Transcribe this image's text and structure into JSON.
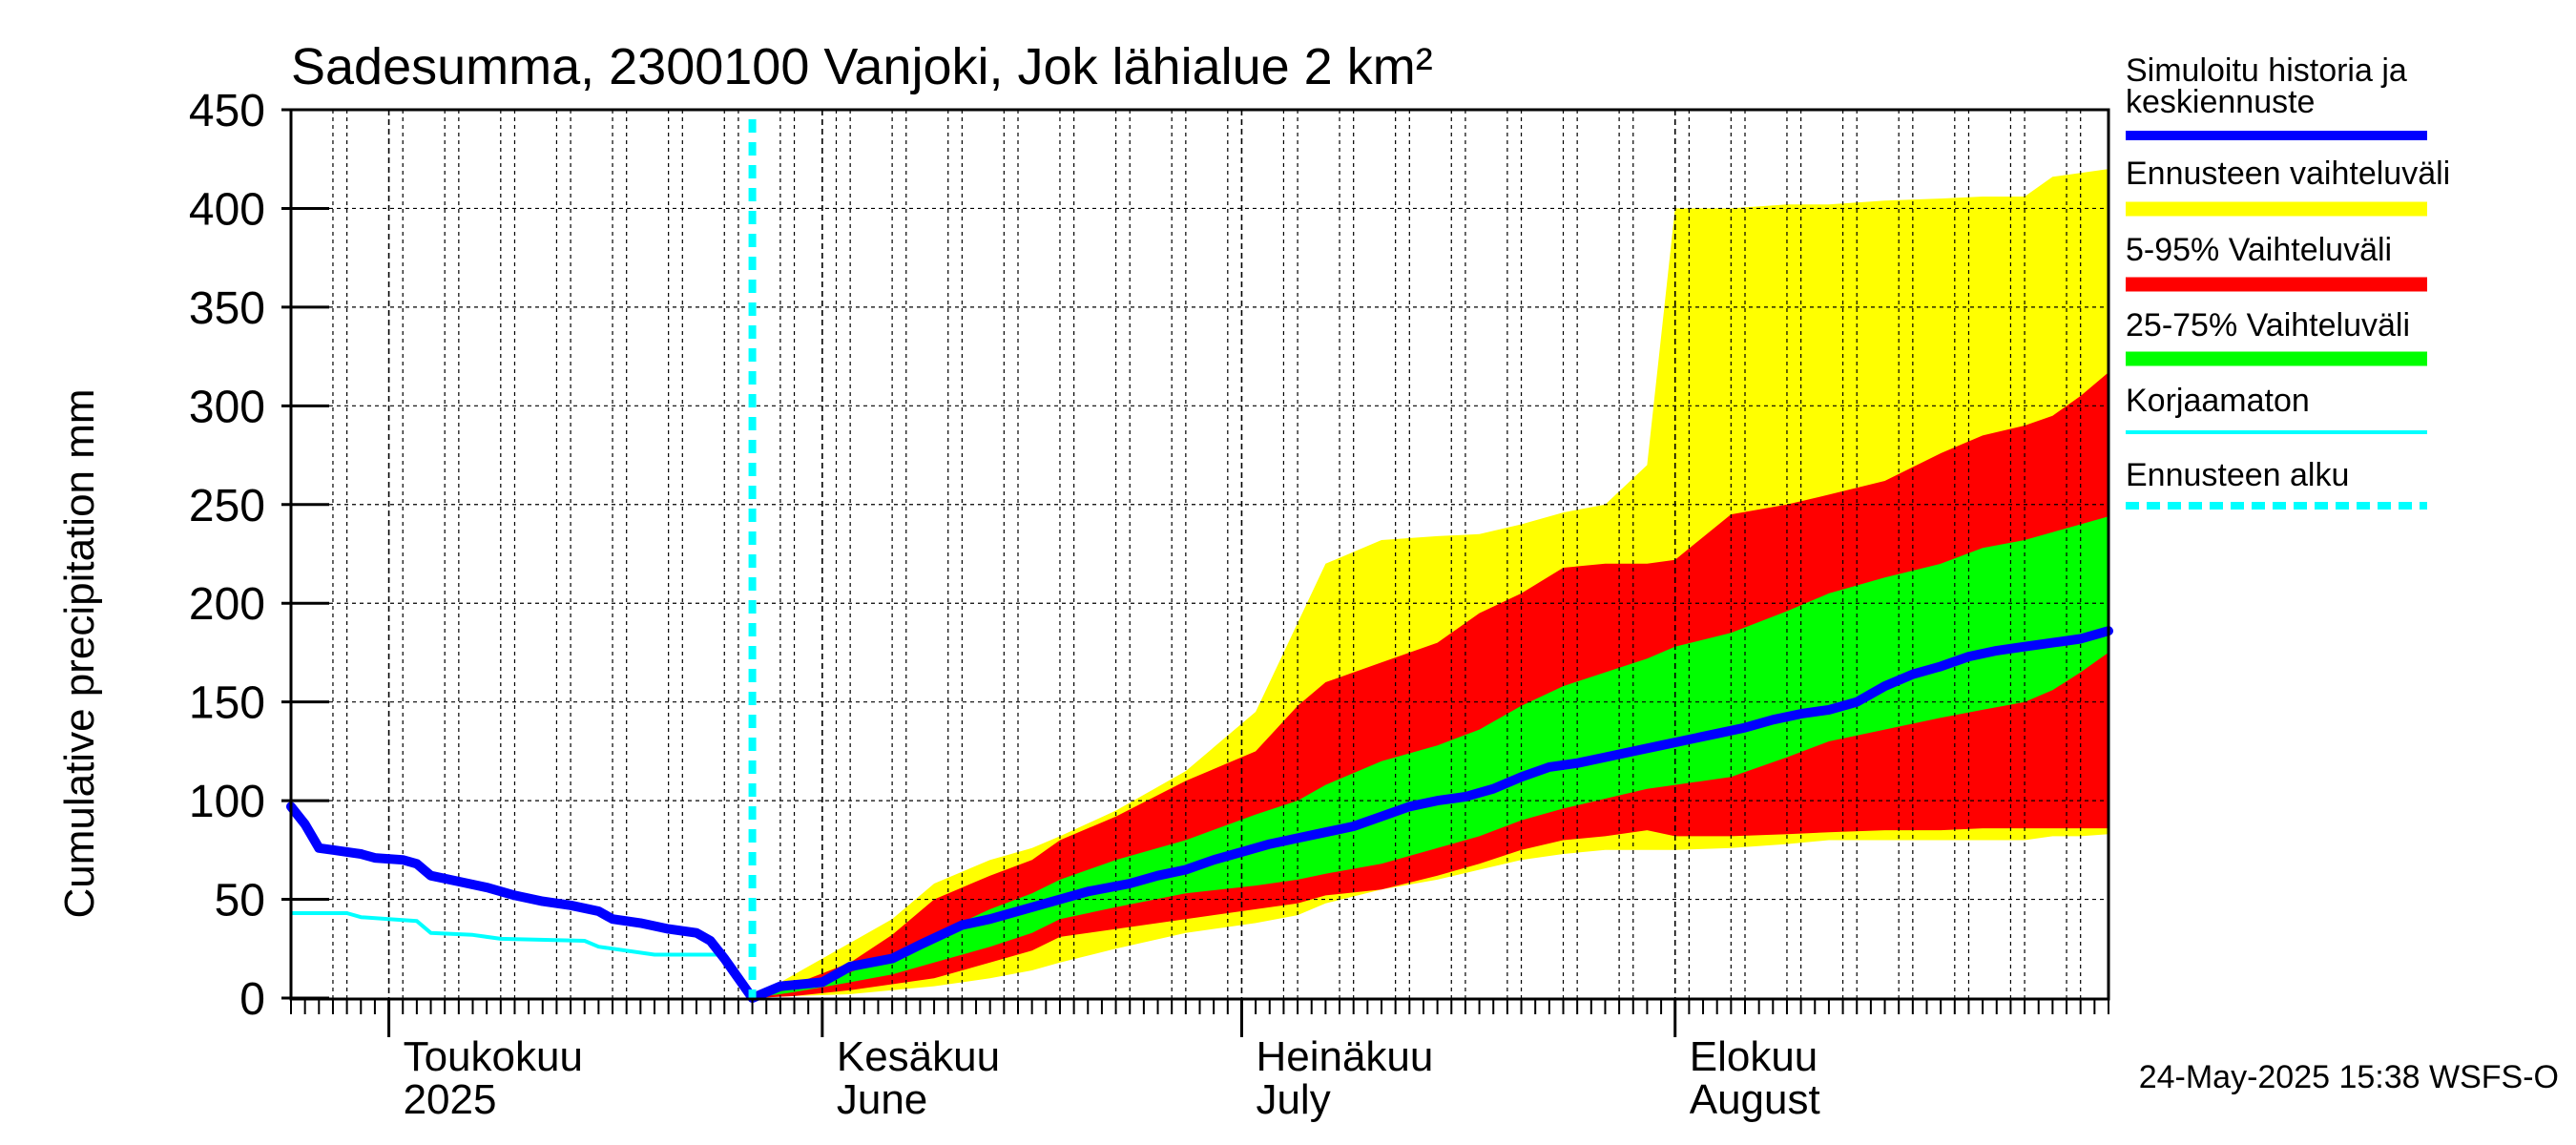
{
  "chart_data": {
    "type": "area",
    "title": "Sadesumma, 2300100 Vanjoki, Jok lähialue 2 km²",
    "ylabel": "Cumulative precipitation   mm",
    "ylim": [
      0,
      450
    ],
    "yticks": [
      0,
      50,
      100,
      150,
      200,
      250,
      300,
      350,
      400,
      450
    ],
    "x_unit": "days since 2025-04-24",
    "xlim": [
      0,
      130
    ],
    "forecast_start": 33,
    "month_labels": [
      {
        "day": 7,
        "top": "Toukokuu",
        "bottom": "2025"
      },
      {
        "day": 38,
        "top": "Kesäkuu",
        "bottom": "June"
      },
      {
        "day": 68,
        "top": "Heinäkuu",
        "bottom": "July"
      },
      {
        "day": 99,
        "top": "Elokuu",
        "bottom": "August"
      }
    ],
    "month_boundaries": [
      7,
      38,
      68,
      99
    ],
    "legend": [
      {
        "label": "Simuloitu historia ja keskiennuste",
        "label_line1": "Simuloitu historia ja",
        "label_line2": "keskiennuste",
        "color": "#0000ff",
        "style": "thick"
      },
      {
        "label": "Ennusteen vaihteluväli",
        "color": "#ffff00",
        "style": "band"
      },
      {
        "label": "5-95% Vaihteluväli",
        "color": "#ff0000",
        "style": "band"
      },
      {
        "label": "25-75% Vaihteluväli",
        "color": "#00ff00",
        "style": "band"
      },
      {
        "label": "Korjaamaton",
        "color": "#00ffff",
        "style": "thin"
      },
      {
        "label": "Ennusteen alku",
        "color": "#00ffff",
        "style": "dashed"
      }
    ],
    "series": [
      {
        "name": "Ennusteen vaihteluväli",
        "color": "#ffff00",
        "x": [
          33,
          36,
          40,
          43,
          46,
          50,
          53,
          55,
          59,
          64,
          69,
          72,
          74,
          78,
          82,
          85,
          88,
          91,
          94,
          97,
          99,
          103,
          107,
          110,
          114,
          118,
          121,
          124,
          126,
          128,
          130
        ],
        "lower": [
          0,
          1,
          2,
          4,
          6,
          10,
          14,
          18,
          25,
          33,
          38,
          42,
          48,
          55,
          60,
          65,
          70,
          73,
          75,
          75,
          75,
          76,
          78,
          80,
          80,
          80,
          80,
          80,
          82,
          82,
          83
        ],
        "upper": [
          0,
          12,
          28,
          40,
          58,
          70,
          76,
          82,
          95,
          115,
          145,
          190,
          220,
          232,
          234,
          235,
          240,
          246,
          250,
          270,
          400,
          400,
          402,
          402,
          404,
          405,
          406,
          406,
          416,
          418,
          420
        ]
      },
      {
        "name": "5-95% Vaihteluväli",
        "color": "#ff0000",
        "x": [
          33,
          36,
          40,
          43,
          46,
          50,
          53,
          55,
          59,
          64,
          69,
          72,
          74,
          78,
          82,
          85,
          88,
          91,
          94,
          97,
          99,
          103,
          107,
          110,
          114,
          118,
          121,
          124,
          126,
          128,
          130
        ],
        "lower": [
          0,
          1,
          4,
          7,
          10,
          18,
          24,
          31,
          35,
          40,
          45,
          48,
          52,
          55,
          62,
          68,
          75,
          80,
          82,
          85,
          82,
          82,
          83,
          84,
          85,
          85,
          86,
          86,
          86,
          86,
          86
        ],
        "upper": [
          0,
          7,
          18,
          32,
          50,
          62,
          70,
          80,
          92,
          110,
          125,
          148,
          160,
          170,
          180,
          195,
          205,
          218,
          220,
          220,
          222,
          245,
          250,
          255,
          262,
          276,
          285,
          290,
          295,
          305,
          317
        ]
      },
      {
        "name": "25-75% Vaihteluväli",
        "color": "#00ff00",
        "x": [
          33,
          36,
          40,
          43,
          46,
          50,
          53,
          55,
          59,
          64,
          69,
          72,
          74,
          78,
          82,
          85,
          88,
          91,
          94,
          97,
          99,
          103,
          107,
          110,
          114,
          118,
          121,
          124,
          126,
          128,
          130
        ],
        "lower": [
          0,
          3,
          8,
          12,
          18,
          26,
          33,
          40,
          46,
          53,
          57,
          60,
          63,
          68,
          76,
          82,
          90,
          96,
          101,
          106,
          108,
          112,
          122,
          130,
          136,
          142,
          146,
          150,
          156,
          165,
          175
        ],
        "upper": [
          0,
          5,
          13,
          22,
          32,
          45,
          53,
          60,
          70,
          80,
          93,
          100,
          108,
          120,
          128,
          136,
          148,
          158,
          165,
          172,
          178,
          185,
          196,
          205,
          213,
          220,
          228,
          232,
          236,
          240,
          244
        ]
      },
      {
        "name": "Simuloitu historia ja keskiennuste",
        "color": "#0000ff",
        "x": [
          0,
          1,
          2,
          3,
          5,
          6,
          8,
          9,
          10,
          12,
          14,
          16,
          18,
          20,
          22,
          23,
          25,
          27,
          29,
          30,
          31,
          33,
          35,
          38,
          40,
          43,
          45,
          48,
          50,
          53,
          55,
          57,
          60,
          62,
          64,
          66,
          68,
          70,
          72,
          74,
          76,
          78,
          80,
          82,
          84,
          86,
          88,
          90,
          92,
          94,
          96,
          98,
          100,
          102,
          104,
          106,
          108,
          110,
          112,
          114,
          116,
          118,
          120,
          122,
          124,
          126,
          128,
          130
        ],
        "y": [
          97,
          88,
          76,
          75,
          73,
          71,
          70,
          68,
          62,
          59,
          56,
          52,
          49,
          47,
          44,
          40,
          38,
          35,
          33,
          29,
          20,
          0,
          6,
          8,
          16,
          20,
          27,
          37,
          40,
          46,
          50,
          54,
          58,
          62,
          65,
          70,
          74,
          78,
          81,
          84,
          87,
          92,
          97,
          100,
          102,
          106,
          112,
          117,
          119,
          122,
          125,
          128,
          131,
          134,
          137,
          141,
          144,
          146,
          150,
          158,
          164,
          168,
          173,
          176,
          178,
          180,
          182,
          186
        ]
      },
      {
        "name": "Korjaamaton",
        "color": "#00ffff",
        "x": [
          0,
          4,
          5,
          7,
          9,
          10,
          13,
          15,
          21,
          22,
          26,
          31,
          33
        ],
        "y": [
          43,
          43,
          41,
          40,
          39,
          33,
          32,
          30,
          29,
          26,
          22,
          22,
          0
        ]
      }
    ]
  },
  "timestamp": "24-May-2025 15:38 WSFS-O"
}
